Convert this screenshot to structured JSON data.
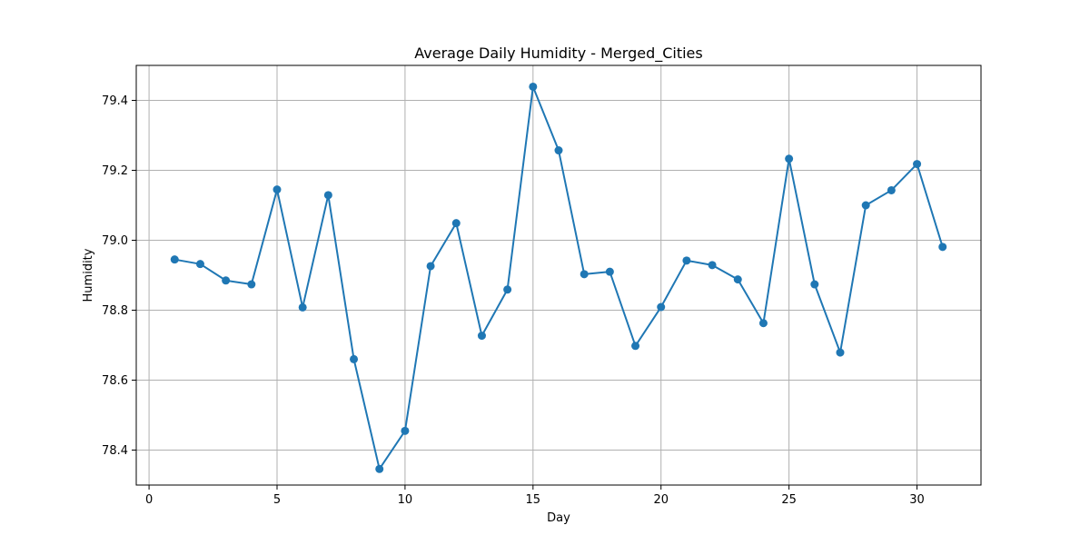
{
  "chart_data": {
    "type": "line",
    "title": "Average Daily Humidity - Merged_Cities",
    "xlabel": "Day",
    "ylabel": "Humidity",
    "xlim": [
      -0.5,
      32.5
    ],
    "ylim": [
      78.3,
      79.5
    ],
    "x_ticks": [
      0,
      5,
      10,
      15,
      20,
      25,
      30
    ],
    "y_ticks": [
      78.4,
      78.6,
      78.8,
      79.0,
      79.2,
      79.4
    ],
    "grid": true,
    "markers": true,
    "series": [
      {
        "color": "#1f77b4",
        "x": [
          1,
          2,
          3,
          4,
          5,
          6,
          7,
          8,
          9,
          10,
          11,
          12,
          13,
          14,
          15,
          16,
          17,
          18,
          19,
          20,
          21,
          22,
          23,
          24,
          25,
          26,
          27,
          28,
          29,
          30,
          31
        ],
        "values": [
          78.945,
          78.932,
          78.885,
          78.874,
          79.145,
          78.808,
          79.129,
          78.66,
          78.346,
          78.455,
          78.926,
          79.049,
          78.727,
          78.859,
          79.439,
          79.257,
          78.903,
          78.91,
          78.698,
          78.809,
          78.942,
          78.929,
          78.888,
          78.763,
          79.233,
          78.874,
          78.679,
          79.1,
          79.143,
          79.218,
          78.981
        ]
      }
    ]
  }
}
